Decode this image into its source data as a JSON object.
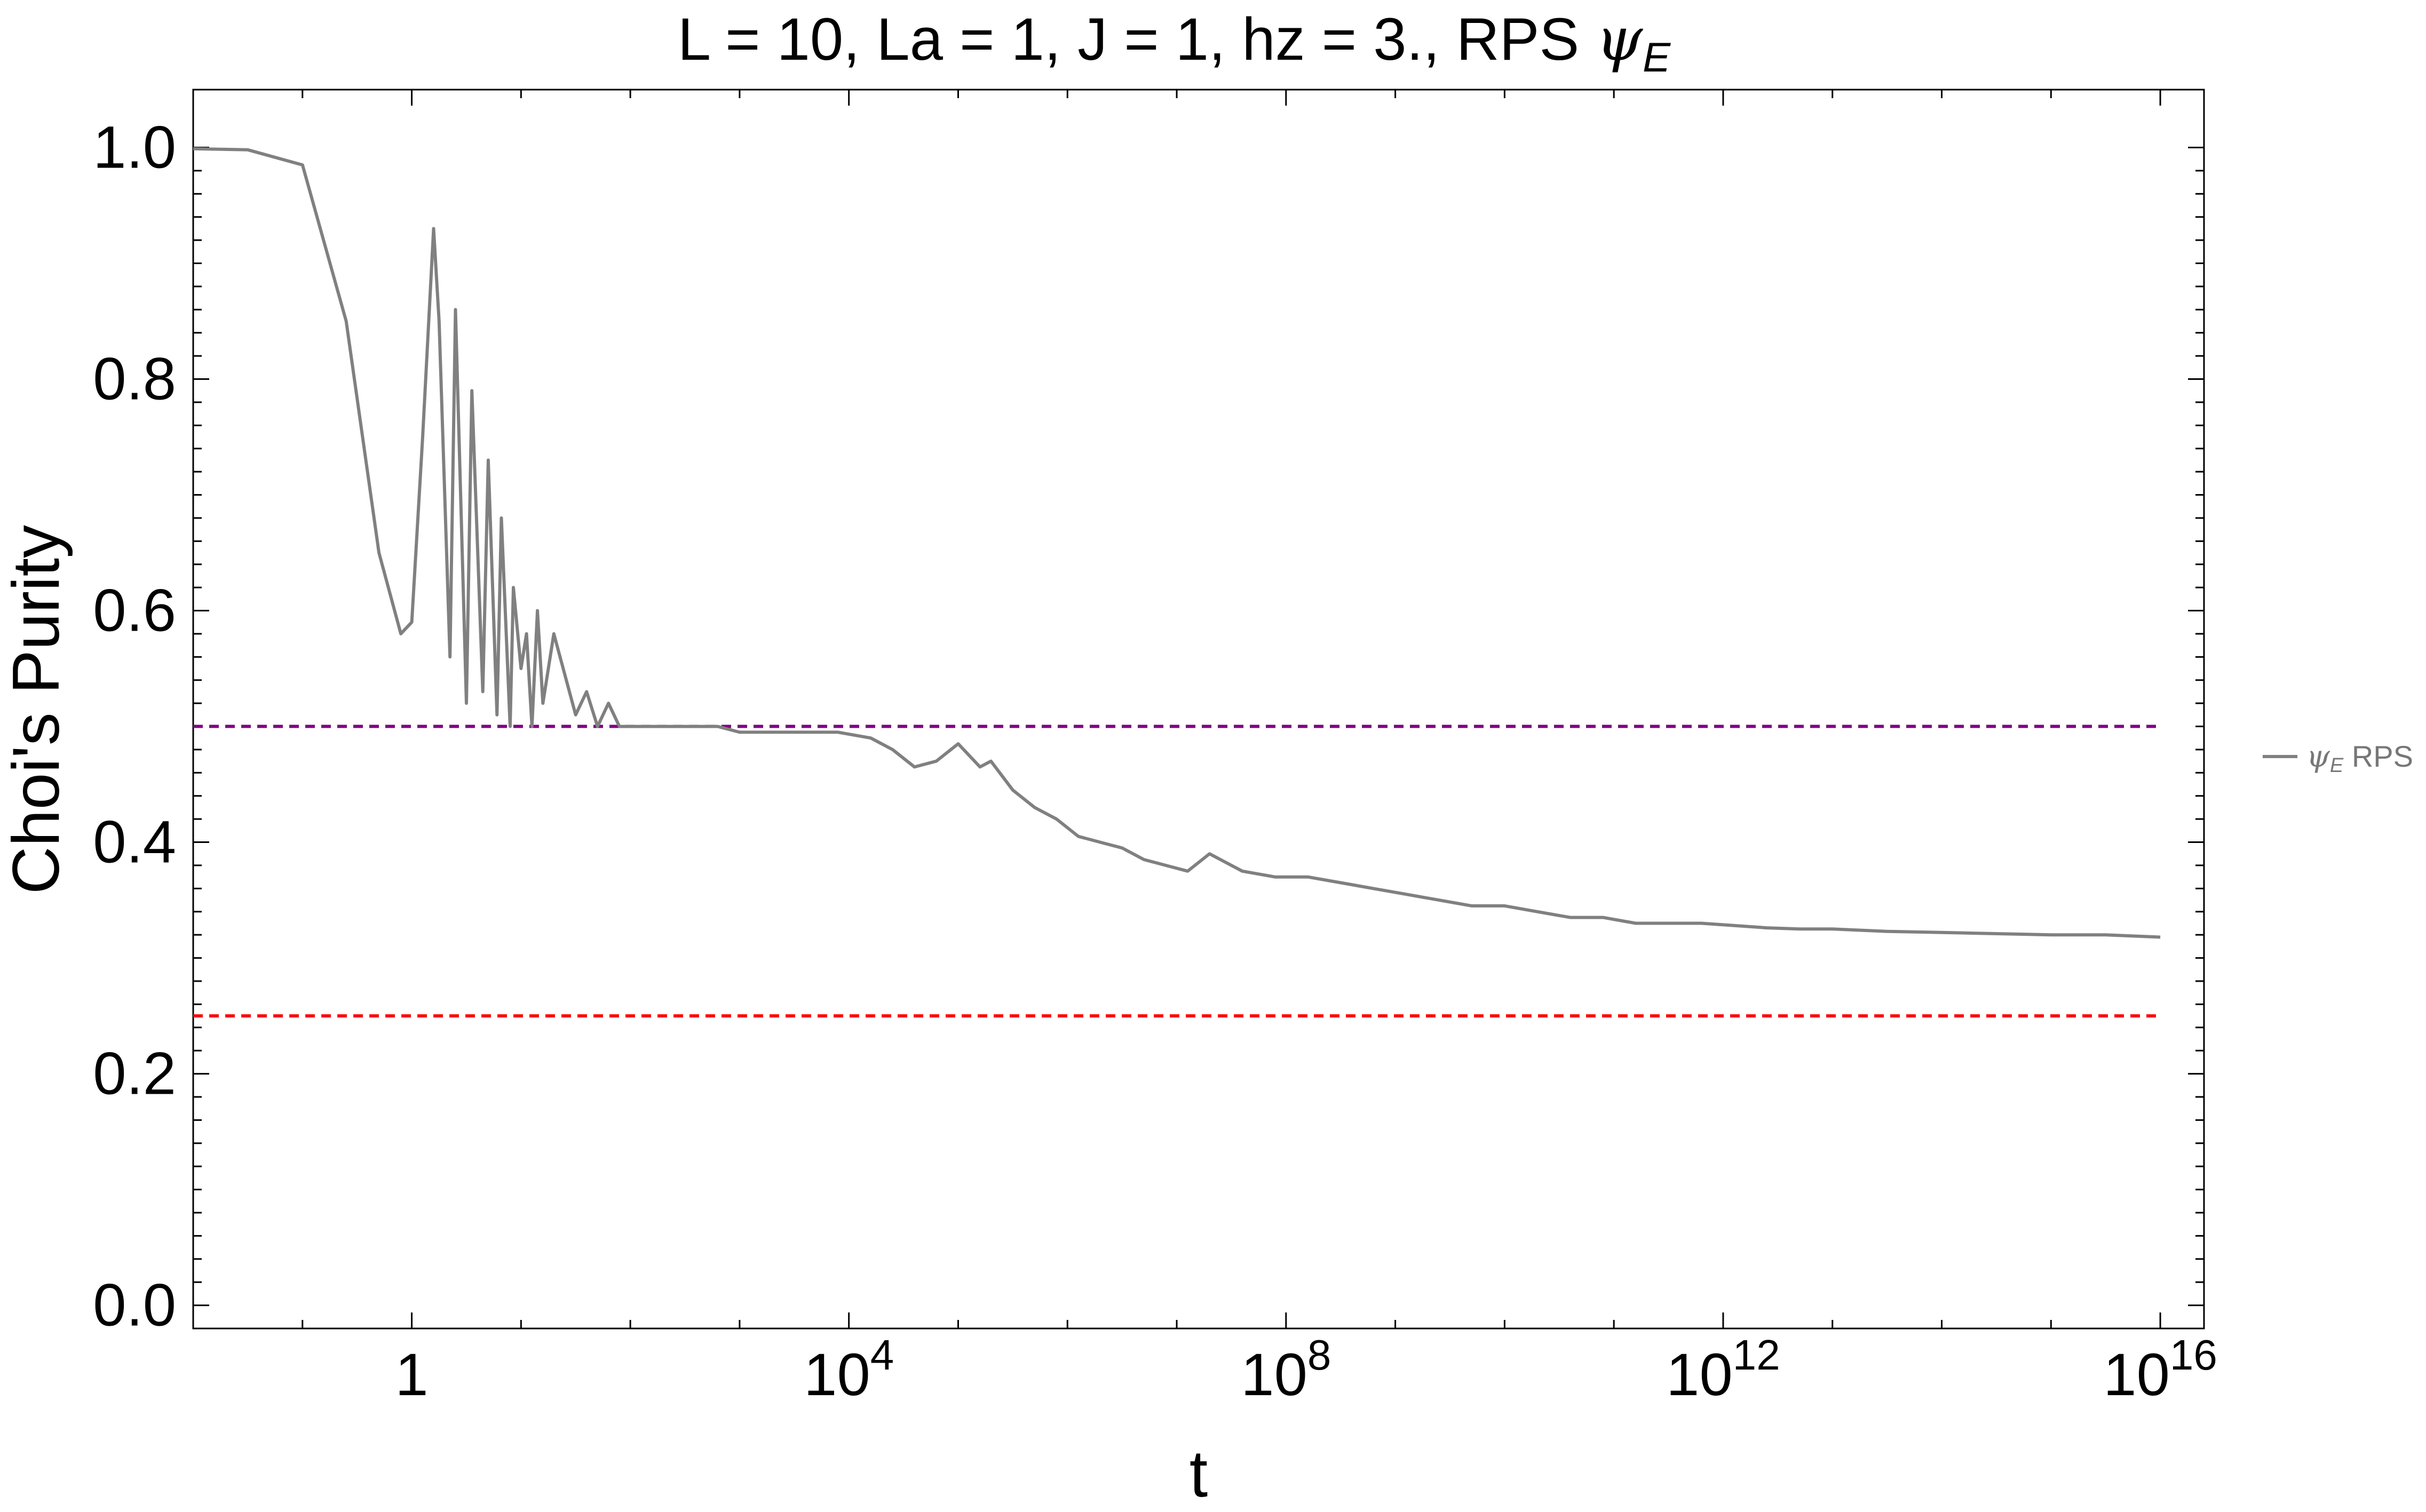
{
  "chart_data": {
    "type": "line",
    "title": {
      "main": "L = 10, La = 1, J = 1, hz = 3., RPS ",
      "psi": "ψ",
      "sub": "E"
    },
    "xlabel": "t",
    "ylabel": "Choi's Purity",
    "x_scale": "log10",
    "xlim_log10": [
      -2.0,
      16.4
    ],
    "ylim": [
      -0.02,
      1.05
    ],
    "x_ticks": [
      {
        "exp": 0,
        "label": "1"
      },
      {
        "exp": 4,
        "label": "10",
        "sup": "4"
      },
      {
        "exp": 8,
        "label": "10",
        "sup": "8"
      },
      {
        "exp": 12,
        "label": "10",
        "sup": "12"
      },
      {
        "exp": 16,
        "label": "10",
        "sup": "16"
      }
    ],
    "y_ticks": [
      {
        "value": 0.0,
        "label": "0.0"
      },
      {
        "value": 0.2,
        "label": "0.2"
      },
      {
        "value": 0.4,
        "label": "0.4"
      },
      {
        "value": 0.6,
        "label": "0.6"
      },
      {
        "value": 0.8,
        "label": "0.8"
      },
      {
        "value": 1.0,
        "label": "1.0"
      }
    ],
    "grid": false,
    "legend": {
      "position": "right",
      "entries": [
        {
          "psi": "ψ",
          "sub": "E",
          "text": " RPS",
          "color": "#808080"
        }
      ]
    },
    "reference_lines": [
      {
        "y": 0.5,
        "color": "#800080",
        "style": "dashed"
      },
      {
        "y": 0.25,
        "color": "#ff0000",
        "style": "dashed"
      }
    ],
    "series": [
      {
        "name": "ψE RPS",
        "color": "#808080",
        "log10_t": [
          -2.0,
          -1.5,
          -1.0,
          -0.6,
          -0.3,
          -0.1,
          0.0,
          0.1,
          0.2,
          0.25,
          0.35,
          0.4,
          0.5,
          0.55,
          0.65,
          0.7,
          0.78,
          0.82,
          0.9,
          0.93,
          1.0,
          1.05,
          1.1,
          1.15,
          1.2,
          1.3,
          1.5,
          1.6,
          1.7,
          1.8,
          1.9,
          2.0,
          2.2,
          2.4,
          2.6,
          2.8,
          3.0,
          3.3,
          3.6,
          3.9,
          4.2,
          4.4,
          4.6,
          4.8,
          5.0,
          5.2,
          5.3,
          5.5,
          5.7,
          5.9,
          6.1,
          6.3,
          6.5,
          6.7,
          6.9,
          7.1,
          7.3,
          7.6,
          7.9,
          8.2,
          8.5,
          8.8,
          9.1,
          9.4,
          9.7,
          10.0,
          10.3,
          10.6,
          10.9,
          11.2,
          11.5,
          11.8,
          12.1,
          12.4,
          12.7,
          13.0,
          13.5,
          14.0,
          14.5,
          15.0,
          15.5,
          16.0
        ],
        "values": [
          0.999,
          0.998,
          0.985,
          0.85,
          0.65,
          0.58,
          0.59,
          0.75,
          0.93,
          0.85,
          0.56,
          0.86,
          0.52,
          0.79,
          0.53,
          0.73,
          0.51,
          0.68,
          0.5,
          0.62,
          0.55,
          0.58,
          0.5,
          0.6,
          0.52,
          0.58,
          0.51,
          0.53,
          0.5,
          0.52,
          0.5,
          0.5,
          0.5,
          0.5,
          0.5,
          0.5,
          0.495,
          0.495,
          0.495,
          0.495,
          0.49,
          0.48,
          0.465,
          0.47,
          0.485,
          0.465,
          0.47,
          0.445,
          0.43,
          0.42,
          0.405,
          0.4,
          0.395,
          0.385,
          0.38,
          0.375,
          0.39,
          0.375,
          0.37,
          0.37,
          0.365,
          0.36,
          0.355,
          0.35,
          0.345,
          0.345,
          0.34,
          0.335,
          0.335,
          0.33,
          0.33,
          0.33,
          0.328,
          0.326,
          0.325,
          0.325,
          0.323,
          0.322,
          0.321,
          0.32,
          0.32,
          0.318
        ]
      }
    ]
  }
}
